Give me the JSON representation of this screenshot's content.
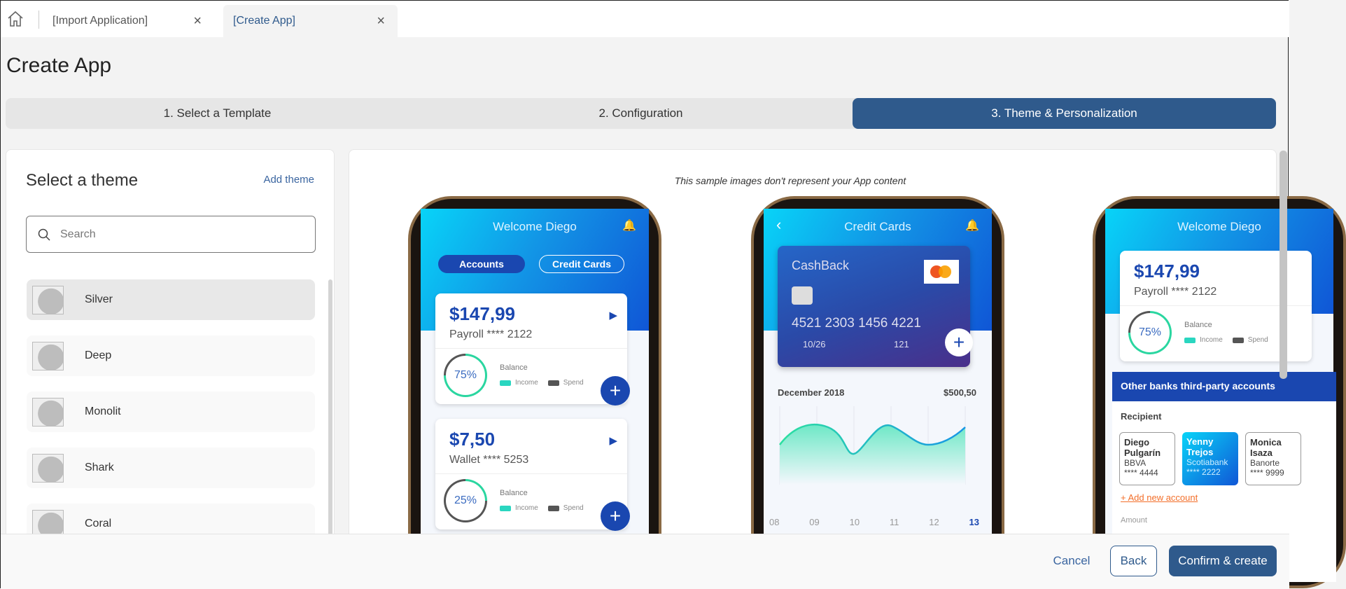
{
  "tabs": [
    {
      "label": "[Import Application]"
    },
    {
      "label": "[Create App]"
    }
  ],
  "page_title": "Create App",
  "steps": [
    {
      "label": "1. Select a Template"
    },
    {
      "label": "2. Configuration"
    },
    {
      "label": "3. Theme & Personalization"
    }
  ],
  "active_step": 3,
  "theme_panel": {
    "heading": "Select a theme",
    "add_theme": "Add theme",
    "search_placeholder": "Search",
    "themes": [
      {
        "label": "Silver",
        "selected": true
      },
      {
        "label": "Deep"
      },
      {
        "label": "Monolit"
      },
      {
        "label": "Shark"
      },
      {
        "label": "Coral"
      }
    ]
  },
  "preview": {
    "caption": "This sample images don't represent your App content",
    "phone1": {
      "title": "Welcome Diego",
      "tab_accounts": "Accounts",
      "tab_cards": "Credit Cards",
      "cards": [
        {
          "amount": "$147,99",
          "account": "Payroll **** 2122",
          "percent": "75%",
          "balance": "Balance",
          "income": "Income",
          "spend": "Spend"
        },
        {
          "amount": "$7,50",
          "account": "Wallet **** 5253",
          "percent": "25%",
          "balance": "Balance",
          "income": "Income",
          "spend": "Spend"
        }
      ]
    },
    "phone2": {
      "title": "Credit Cards",
      "card_name": "CashBack",
      "card_number": "4521 2303 1456 4221",
      "expiry": "10/26",
      "cvv": "121",
      "month": "December 2018",
      "total": "$500,50",
      "days": [
        "08",
        "09",
        "10",
        "11",
        "12",
        "13"
      ]
    },
    "phone3": {
      "title": "Welcome Diego",
      "amount": "$147,99",
      "account": "Payroll **** 2122",
      "percent": "75%",
      "balance": "Balance",
      "income": "Income",
      "spend": "Spend",
      "section": "Other banks third-party accounts",
      "recipient_label": "Recipient",
      "recipients": [
        {
          "name": "Diego Pulgarín",
          "bank": "BBVA",
          "acct": "**** 4444"
        },
        {
          "name": "Yenny Trejos",
          "bank": "Scotiabank",
          "acct": "**** 2222"
        },
        {
          "name": "Monica Isaza",
          "bank": "Banorte",
          "acct": "**** 9999"
        }
      ],
      "add_account": "Add new account",
      "amount_label": "Amount"
    }
  },
  "footer": {
    "cancel": "Cancel",
    "back": "Back",
    "confirm": "Confirm & create"
  },
  "colors": {
    "primary": "#2f5a8c",
    "link": "#3a65a0",
    "app_blue": "#1a47b0"
  }
}
